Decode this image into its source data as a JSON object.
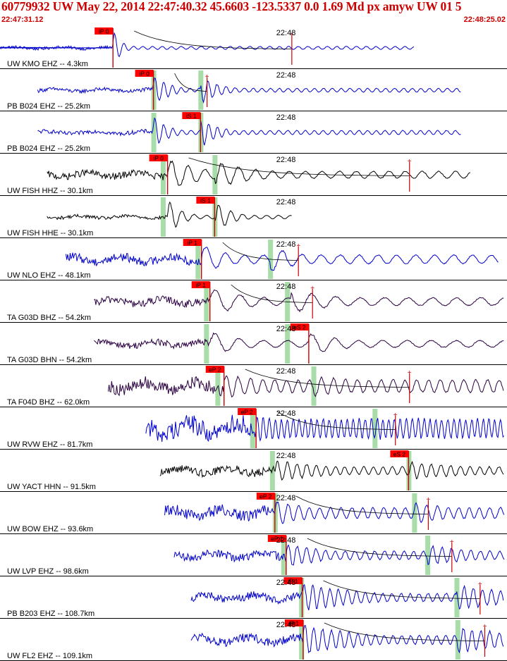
{
  "header": {
    "title": "60779932 UW May 22, 2014 22:47:40.32   45.6603 -123.5337  0.0 1.69 Md px amyw UW 01   5",
    "time_start": "22:47:31.12",
    "time_end": "22:48:25.02"
  },
  "colors": {
    "header_text": "#cc0000",
    "pick_flag": "#ff0000",
    "pick_line": "#cc0000",
    "window_band": "#a8dca8",
    "trace_blue": "#0000cc",
    "trace_black": "#000000",
    "trace_purple": "#2a0040",
    "separator": "#000000"
  },
  "chart_data": {
    "type": "line",
    "title": "60779932 UW May 22, 2014 22:47:40.32   45.6603 -123.5337  0.0 1.69 Md px amyw UW 01   5",
    "x_range": [
      "22:47:31.12",
      "22:48:25.02"
    ],
    "minute_mark": "22:48",
    "traces": [
      {
        "label": "UW KMO EHZ -- 4.3km",
        "pick": "iP 0",
        "pick_type": "P",
        "color": "blue",
        "amp": 26,
        "noise": 0.08,
        "decay": 0.09,
        "freq": 0.55,
        "start_s": 0,
        "end_s": 44,
        "band_s": null,
        "p_s": 12,
        "s_s": null,
        "coda_s": 31
      },
      {
        "label": "PB B024 EHZ -- 25.2km",
        "pick": "iP 0",
        "pick_type": "P",
        "color": "blue",
        "amp": 22,
        "noise": 0.12,
        "decay": 0.045,
        "freq": 0.6,
        "start_s": 4,
        "end_s": 49,
        "band_s": [
          16.3,
          21.3
        ],
        "p_s": 16.3,
        "s_s": 21.3,
        "coda_s": 22
      },
      {
        "label": "PB B024 EHZ -- 25.2km",
        "pick": "iS 1",
        "pick_type": "S",
        "color": "blue",
        "amp": 24,
        "noise": 0.12,
        "decay": 0.05,
        "freq": 0.6,
        "start_s": 4,
        "end_s": 49,
        "band_s": [
          16.3,
          21.3
        ],
        "p_s": 16.3,
        "s_s": 21.3,
        "coda_s": null
      },
      {
        "label": "UW FISH HHZ -- 30.1km",
        "pick": "iP 0",
        "pick_type": "P",
        "color": "black",
        "amp": 22,
        "noise": 0.22,
        "decay": 0.02,
        "freq": 0.32,
        "start_s": 5,
        "end_s": 50,
        "band_s": [
          17.3,
          22.8
        ],
        "p_s": 17.8,
        "s_s": 22.8,
        "coda_s": 43.5
      },
      {
        "label": "UW FISH HHE -- 30.1km",
        "pick": "iS 1",
        "pick_type": "S",
        "color": "black",
        "amp": 24,
        "noise": 0.1,
        "decay": 0.05,
        "freq": 0.45,
        "start_s": 5,
        "end_s": 31,
        "band_s": [
          17.3,
          22.8
        ],
        "p_s": 17.8,
        "s_s": 22.8,
        "coda_s": null
      },
      {
        "label": "UW NLO EHZ -- 48.1km",
        "pick": "iP 1",
        "pick_type": "P",
        "color": "blue",
        "amp": 20,
        "noise": 0.3,
        "decay": 0.025,
        "freq": 0.28,
        "start_s": 7,
        "end_s": 53,
        "band_s": [
          21.0,
          28.7
        ],
        "p_s": 21.4,
        "s_s": 28.7,
        "coda_s": 31.7
      },
      {
        "label": "TA G03D BHZ -- 54.2km",
        "pick": "iP 1",
        "pick_type": "P",
        "color": "purple",
        "amp": 18,
        "noise": 0.3,
        "decay": 0.015,
        "freq": 0.22,
        "start_s": 10,
        "end_s": 54,
        "band_s": [
          21.9,
          30.5
        ],
        "p_s": 22.3,
        "s_s": 30.9,
        "coda_s": 33.2
      },
      {
        "label": "TA G03D BHN -- 54.2km",
        "pick": "eS 2",
        "pick_type": "S",
        "color": "purple",
        "amp": 17,
        "noise": 0.28,
        "decay": 0.02,
        "freq": 0.22,
        "start_s": 10,
        "end_s": 54,
        "band_s": [
          21.9,
          30.5
        ],
        "p_s": 22.3,
        "s_s": 32.8,
        "coda_s": null
      },
      {
        "label": "TA F04D BHZ -- 62.0km",
        "pick": "eP 2",
        "pick_type": "P",
        "color": "purple",
        "amp": 16,
        "noise": 0.55,
        "decay": 0.01,
        "freq": 0.45,
        "start_s": 11.5,
        "end_s": 55.5,
        "band_s": [
          23.1,
          33.3
        ],
        "p_s": 23.8,
        "s_s": 33.3,
        "coda_s": 43.5
      },
      {
        "label": "UW RVW EHZ -- 81.7km",
        "pick": "eP 2",
        "pick_type": "P",
        "color": "blue",
        "amp": 18,
        "noise": 0.75,
        "decay": 0.01,
        "freq": 0.9,
        "start_s": 15.5,
        "end_s": 59.5,
        "band_s": [
          26.8,
          39.8
        ],
        "p_s": 27.2,
        "s_s": 39.8,
        "coda_s": 42
      },
      {
        "label": "UW YACT HHN -- 91.5km",
        "pick": "eS 2",
        "pick_type": "S",
        "color": "black",
        "amp": 14,
        "noise": 0.4,
        "decay": 0.01,
        "freq": 0.55,
        "start_s": 17,
        "end_s": 61,
        "band_s": [
          28.9,
          43.4
        ],
        "p_s": 29.3,
        "s_s": 43.4,
        "coda_s": null
      },
      {
        "label": "UW BOW EHZ -- 93.6km",
        "pick": "eP 2",
        "pick_type": "P",
        "color": "blue",
        "amp": 17,
        "noise": 0.45,
        "decay": 0.015,
        "freq": 0.5,
        "start_s": 17.5,
        "end_s": 61.5,
        "band_s": [
          29.2,
          44.0
        ],
        "p_s": 29.2,
        "s_s": 44.0,
        "coda_s": 45.5
      },
      {
        "label": "UW LVP EHZ -- 98.6km",
        "pick": "eP 1",
        "pick_type": "P",
        "color": "blue",
        "amp": 17,
        "noise": 0.35,
        "decay": 0.015,
        "freq": 0.55,
        "start_s": 18.5,
        "end_s": 62.5,
        "band_s": [
          30.1,
          45.4
        ],
        "p_s": 30.4,
        "s_s": 45.4,
        "coda_s": 48.0
      },
      {
        "label": "PB B203 EHZ -- 108.7km",
        "pick": "iP 1",
        "pick_type": "P",
        "color": "blue",
        "amp": 19,
        "noise": 0.3,
        "decay": 0.01,
        "freq": 0.6,
        "start_s": 20.3,
        "end_s": 64.3,
        "band_s": [
          32.0,
          48.5
        ],
        "p_s": 32.1,
        "s_s": 48.5,
        "coda_s": 51.0
      },
      {
        "label": "UW FL2 EHZ -- 109.1km",
        "pick": "iP 1",
        "pick_type": "P",
        "color": "blue",
        "amp": 20,
        "noise": 0.3,
        "decay": 0.01,
        "freq": 0.6,
        "start_s": 20.3,
        "end_s": 64.3,
        "band_s": [
          32.0,
          48.6
        ],
        "p_s": 32.2,
        "s_s": 48.6,
        "coda_s": 51.5
      }
    ]
  }
}
